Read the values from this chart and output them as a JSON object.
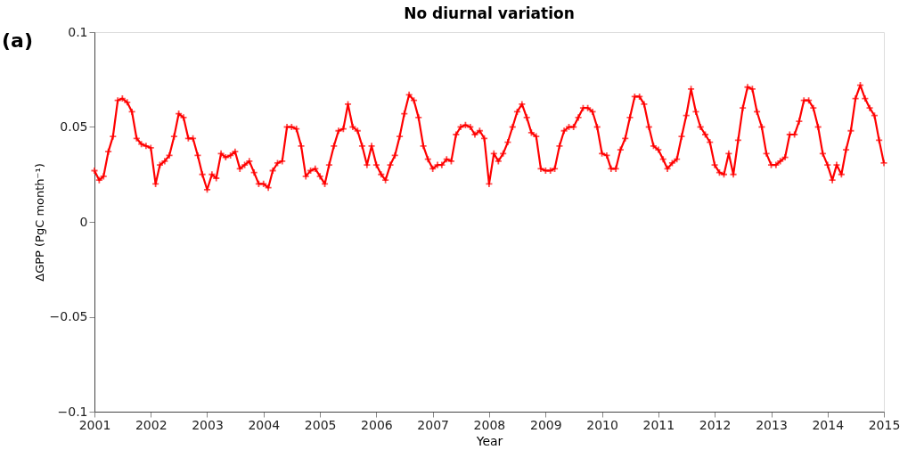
{
  "chart_data": {
    "type": "line",
    "title": "No diurnal variation",
    "xlabel": "Year",
    "ylabel": "ΔGPP (PgC month⁻¹)",
    "annotations": [
      "(a)"
    ],
    "xlim": [
      "2001",
      "2015"
    ],
    "xticks": [
      "2001",
      "2002",
      "2003",
      "2004",
      "2005",
      "2006",
      "2007",
      "2008",
      "2009",
      "2010",
      "2011",
      "2012",
      "2013",
      "2014",
      "2015"
    ],
    "ylim": [
      -0.1,
      0.1
    ],
    "yticks": [
      -0.1,
      -0.05,
      0,
      0.05,
      0.1
    ],
    "grid": false,
    "marker": "cross",
    "line_style": "solid",
    "x": [
      "2001-01",
      "2001-02",
      "2001-03",
      "2001-04",
      "2001-05",
      "2001-06",
      "2001-07",
      "2001-08",
      "2001-09",
      "2001-10",
      "2001-11",
      "2001-12",
      "2002-01",
      "2002-02",
      "2002-03",
      "2002-04",
      "2002-05",
      "2002-06",
      "2002-07",
      "2002-08",
      "2002-09",
      "2002-10",
      "2002-11",
      "2002-12",
      "2003-01",
      "2003-02",
      "2003-03",
      "2003-04",
      "2003-05",
      "2003-06",
      "2003-07",
      "2003-08",
      "2003-09",
      "2003-10",
      "2003-11",
      "2003-12",
      "2004-01",
      "2004-02",
      "2004-03",
      "2004-04",
      "2004-05",
      "2004-06",
      "2004-07",
      "2004-08",
      "2004-09",
      "2004-10",
      "2004-11",
      "2004-12",
      "2005-01",
      "2005-02",
      "2005-03",
      "2005-04",
      "2005-05",
      "2005-06",
      "2005-07",
      "2005-08",
      "2005-09",
      "2005-10",
      "2005-11",
      "2005-12",
      "2006-01",
      "2006-02",
      "2006-03",
      "2006-04",
      "2006-05",
      "2006-06",
      "2006-07",
      "2006-08",
      "2006-09",
      "2006-10",
      "2006-11",
      "2006-12",
      "2007-01",
      "2007-02",
      "2007-03",
      "2007-04",
      "2007-05",
      "2007-06",
      "2007-07",
      "2007-08",
      "2007-09",
      "2007-10",
      "2007-11",
      "2007-12",
      "2008-01",
      "2008-02",
      "2008-03",
      "2008-04",
      "2008-05",
      "2008-06",
      "2008-07",
      "2008-08",
      "2008-09",
      "2008-10",
      "2008-11",
      "2008-12",
      "2009-01",
      "2009-02",
      "2009-03",
      "2009-04",
      "2009-05",
      "2009-06",
      "2009-07",
      "2009-08",
      "2009-09",
      "2009-10",
      "2009-11",
      "2009-12",
      "2010-01",
      "2010-02",
      "2010-03",
      "2010-04",
      "2010-05",
      "2010-06",
      "2010-07",
      "2010-08",
      "2010-09",
      "2010-10",
      "2010-11",
      "2010-12",
      "2011-01",
      "2011-02",
      "2011-03",
      "2011-04",
      "2011-05",
      "2011-06",
      "2011-07",
      "2011-08",
      "2011-09",
      "2011-10",
      "2011-11",
      "2011-12",
      "2012-01",
      "2012-02",
      "2012-03",
      "2012-04",
      "2012-05",
      "2012-06",
      "2012-07",
      "2012-08",
      "2012-09",
      "2012-10",
      "2012-11",
      "2012-12",
      "2013-01",
      "2013-02",
      "2013-03",
      "2013-04",
      "2013-05",
      "2013-06",
      "2013-07",
      "2013-08",
      "2013-09",
      "2013-10",
      "2013-11",
      "2013-12",
      "2014-01",
      "2014-02",
      "2014-03",
      "2014-04",
      "2014-05",
      "2014-06",
      "2014-07",
      "2014-08",
      "2014-09",
      "2014-10",
      "2014-11",
      "2014-12",
      "2015-01"
    ],
    "series": [
      {
        "color": "#ff0000",
        "values": [
          0.027,
          0.022,
          0.024,
          0.037,
          0.045,
          0.064,
          0.065,
          0.063,
          0.058,
          0.044,
          0.041,
          0.04,
          0.039,
          0.02,
          0.03,
          0.032,
          0.035,
          0.045,
          0.057,
          0.055,
          0.044,
          0.044,
          0.035,
          0.025,
          0.017,
          0.025,
          0.023,
          0.036,
          0.034,
          0.035,
          0.037,
          0.028,
          0.03,
          0.032,
          0.026,
          0.02,
          0.02,
          0.018,
          0.027,
          0.031,
          0.032,
          0.05,
          0.05,
          0.049,
          0.04,
          0.024,
          0.027,
          0.028,
          0.024,
          0.02,
          0.03,
          0.04,
          0.048,
          0.049,
          0.062,
          0.05,
          0.048,
          0.04,
          0.03,
          0.04,
          0.03,
          0.025,
          0.022,
          0.03,
          0.035,
          0.045,
          0.057,
          0.067,
          0.064,
          0.055,
          0.04,
          0.033,
          0.028,
          0.03,
          0.03,
          0.033,
          0.032,
          0.046,
          0.05,
          0.051,
          0.05,
          0.046,
          0.048,
          0.044,
          0.02,
          0.036,
          0.032,
          0.036,
          0.042,
          0.05,
          0.058,
          0.062,
          0.055,
          0.047,
          0.045,
          0.028,
          0.027,
          0.027,
          0.028,
          0.04,
          0.048,
          0.05,
          0.05,
          0.055,
          0.06,
          0.06,
          0.058,
          0.05,
          0.036,
          0.035,
          0.028,
          0.028,
          0.038,
          0.044,
          0.055,
          0.066,
          0.066,
          0.062,
          0.05,
          0.04,
          0.038,
          0.033,
          0.028,
          0.031,
          0.033,
          0.045,
          0.056,
          0.07,
          0.058,
          0.05,
          0.046,
          0.042,
          0.03,
          0.026,
          0.025,
          0.036,
          0.025,
          0.043,
          0.06,
          0.071,
          0.07,
          0.058,
          0.05,
          0.036,
          0.03,
          0.03,
          0.032,
          0.034,
          0.046,
          0.046,
          0.053,
          0.064,
          0.064,
          0.06,
          0.05,
          0.036,
          0.03,
          0.022,
          0.03,
          0.025,
          0.038,
          0.048,
          0.065,
          0.072,
          0.065,
          0.06,
          0.056,
          0.043,
          0.031
        ]
      }
    ]
  }
}
